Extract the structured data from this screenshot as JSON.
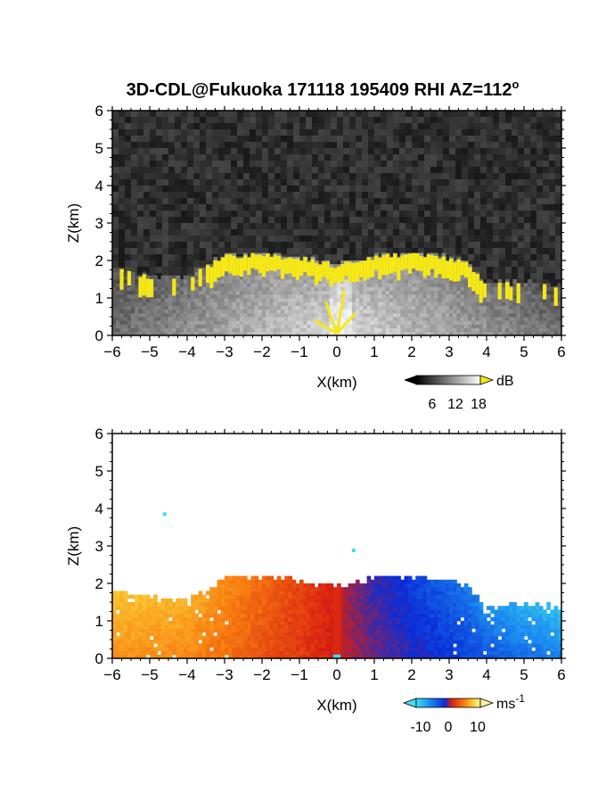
{
  "figure": {
    "title": "3D-CDL@Fukuoka 171118 195409 RHI AZ=112",
    "title_superscript": "o"
  },
  "chart_data": [
    {
      "type": "heatmap",
      "panel": "reflectivity",
      "xlabel": "X(km)",
      "ylabel": "Z(km)",
      "xlim": [
        -6,
        6
      ],
      "ylim": [
        0,
        6
      ],
      "x_ticks": [
        "-6",
        "-5",
        "-4",
        "-3",
        "-2",
        "-1",
        "0",
        "1",
        "2",
        "3",
        "4",
        "5",
        "6"
      ],
      "y_ticks": [
        "0",
        "1",
        "2",
        "3",
        "4",
        "5",
        "6"
      ],
      "colorbar": {
        "unit": "dB",
        "tick_labels": [
          "6",
          "12",
          "18"
        ],
        "range": [
          0,
          20
        ],
        "low_color": "#000000",
        "high_color": "#ffffff",
        "over_color": "#f5e816"
      },
      "echo_top_km": [
        {
          "x": -6.0,
          "z": 1.8
        },
        {
          "x": -5.0,
          "z": 1.55
        },
        {
          "x": -4.0,
          "z": 1.5
        },
        {
          "x": -3.0,
          "z": 2.1
        },
        {
          "x": -2.0,
          "z": 2.15
        },
        {
          "x": -1.0,
          "z": 2.05
        },
        {
          "x": 0.0,
          "z": 1.85
        },
        {
          "x": 1.0,
          "z": 2.1
        },
        {
          "x": 2.0,
          "z": 2.15
        },
        {
          "x": 3.0,
          "z": 2.05
        },
        {
          "x": 3.5,
          "z": 1.9
        },
        {
          "x": 4.0,
          "z": 1.3
        },
        {
          "x": 5.0,
          "z": 1.4
        },
        {
          "x": 6.0,
          "z": 1.3
        }
      ]
    },
    {
      "type": "heatmap",
      "panel": "radial_velocity",
      "xlabel": "X(km)",
      "ylabel": "Z(km)",
      "xlim": [
        -6,
        6
      ],
      "ylim": [
        0,
        6
      ],
      "x_ticks": [
        "-6",
        "-5",
        "-4",
        "-3",
        "-2",
        "-1",
        "0",
        "1",
        "2",
        "3",
        "4",
        "5",
        "6"
      ],
      "y_ticks": [
        "0",
        "1",
        "2",
        "3",
        "4",
        "5",
        "6"
      ],
      "colorbar": {
        "unit": "ms",
        "unit_superscript": "-1",
        "tick_labels": [
          "-10",
          "0",
          "10"
        ],
        "range": [
          -15,
          15
        ],
        "colors": [
          "#3fe0f0",
          "#1c8ef0",
          "#0a2cd8",
          "#d81e10",
          "#f87e10",
          "#fbd43a",
          "#fdf4a0"
        ]
      },
      "velocity_profile": [
        {
          "x": -6.0,
          "v": 9
        },
        {
          "x": -4.0,
          "v": 8
        },
        {
          "x": -3.0,
          "v": 6
        },
        {
          "x": -2.0,
          "v": 4
        },
        {
          "x": -1.0,
          "v": 2
        },
        {
          "x": -0.1,
          "v": 0
        },
        {
          "x": 0.1,
          "v": -1
        },
        {
          "x": 1.0,
          "v": -4
        },
        {
          "x": 2.0,
          "v": -6
        },
        {
          "x": 3.0,
          "v": -8
        },
        {
          "x": 4.0,
          "v": -10
        },
        {
          "x": 5.0,
          "v": -12
        },
        {
          "x": 6.0,
          "v": -13
        }
      ],
      "isolated_points": [
        {
          "x": -4.6,
          "z": 3.85
        },
        {
          "x": 0.45,
          "z": 2.88
        }
      ]
    }
  ]
}
